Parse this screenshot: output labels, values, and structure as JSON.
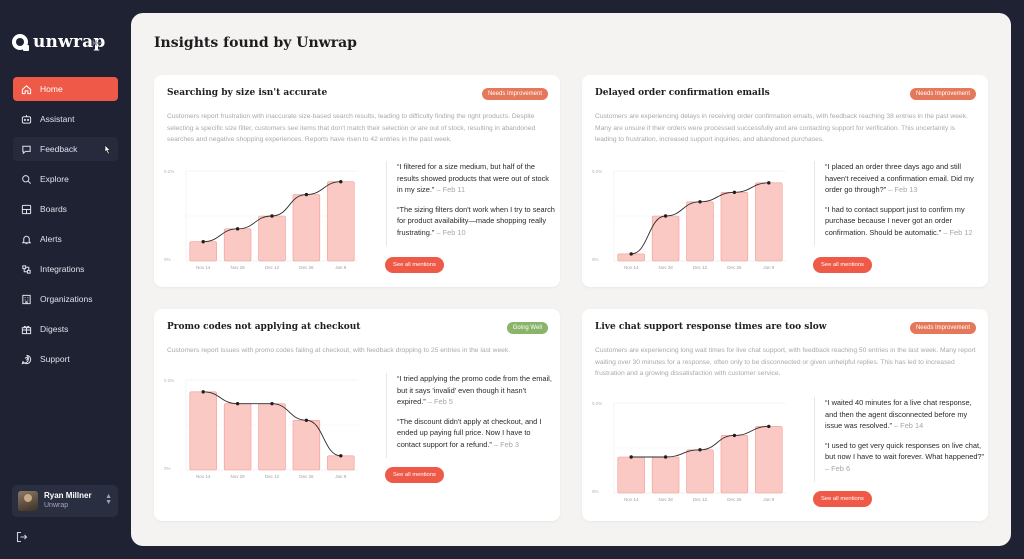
{
  "app": {
    "name": "unwrap"
  },
  "sidebar": {
    "items": [
      {
        "label": "Home",
        "icon": "home-icon",
        "active": true
      },
      {
        "label": "Assistant",
        "icon": "assistant-icon"
      },
      {
        "label": "Feedback",
        "icon": "feedback-icon"
      },
      {
        "label": "Explore",
        "icon": "search-icon"
      },
      {
        "label": "Boards",
        "icon": "boards-icon"
      },
      {
        "label": "Alerts",
        "icon": "bell-icon"
      },
      {
        "label": "Integrations",
        "icon": "integrations-icon"
      },
      {
        "label": "Organizations",
        "icon": "building-icon"
      },
      {
        "label": "Digests",
        "icon": "gift-icon"
      },
      {
        "label": "Support",
        "icon": "support-icon"
      }
    ],
    "user": {
      "name": "Ryan Millner",
      "org": "Unwrap"
    }
  },
  "main": {
    "title": "Insights found by Unwrap",
    "cards": [
      {
        "title": "Searching by size isn't accurate",
        "badge": "Needs Improvement",
        "badge_type": "warn",
        "description": "Customers report frustration with inaccurate size-based search results, leading to difficulty finding the right products. Despite selecting a specific size filter, customers see items that don't match their selection or are out of stock, resulting in abandoned searches and negative shopping experiences. Reports have risen to 42 entries in the past week.",
        "quotes": [
          {
            "text": "“I filtered for a size medium, but half of the results showed products that were out of stock in my size.”",
            "date": "– Feb 11"
          },
          {
            "text": "“The sizing filters don't work when I try to search for product availability—made shopping really frustrating.”",
            "date": "– Feb 10"
          }
        ],
        "button": "See all mentions",
        "chart": {
          "type": "bar",
          "categories": [
            "Nov 14",
            "Nov 28",
            "Dec 12",
            "Dec 26",
            "Jan 9"
          ],
          "values": [
            9,
            15,
            21,
            31,
            37
          ],
          "yticks": [
            "0.2%",
            "0%"
          ],
          "ymax": 42
        }
      },
      {
        "title": "Delayed order confirmation emails",
        "badge": "Needs Improvement",
        "badge_type": "warn",
        "description": "Customers are experiencing delays in receiving order confirmation emails, with feedback reaching 38 entries in the past week. Many are unsure if their orders were processed successfully and are contacting support for verification. This uncertainty is leading to frustration, increased support inquiries, and abandoned purchases.",
        "quotes": [
          {
            "text": "“I placed an order three days ago and still haven't received a confirmation email. Did my order go through?”",
            "date": "– Feb 13"
          },
          {
            "text": "“I had to contact support just to confirm my purchase because I never got an order confirmation. Should be automatic.”",
            "date": "– Feb 12"
          }
        ],
        "button": "See all mentions",
        "chart": {
          "type": "bar",
          "categories": [
            "Nov 14",
            "Nov 28",
            "Dec 12",
            "Dec 26",
            "Jan 9"
          ],
          "values": [
            3,
            19,
            25,
            29,
            33
          ],
          "yticks": [
            "0.2%",
            "0%"
          ],
          "ymax": 38
        }
      },
      {
        "title": "Promo codes not applying at checkout",
        "badge": "Going Well",
        "badge_type": "good",
        "description": "Customers report issues with promo codes failing at checkout, with feedback dropping to 25 entries in the last week.",
        "quotes": [
          {
            "text": "“I tried applying the promo code from the email, but it says 'invalid' even though it hasn't expired.”",
            "date": "– Feb 5"
          },
          {
            "text": "“The discount didn't apply at checkout, and I ended up paying full price. Now I have to contact support for a refund.”",
            "date": "– Feb 3"
          }
        ],
        "button": "See all mentions",
        "chart": {
          "type": "bar",
          "categories": [
            "Nov 14",
            "Nov 28",
            "Dec 12",
            "Dec 26",
            "Jan 9"
          ],
          "values": [
            33,
            28,
            28,
            21,
            6
          ],
          "yticks": [
            "0.2%",
            "0%"
          ],
          "ymax": 38
        }
      },
      {
        "title": "Live chat support response times are too slow",
        "badge": "Needs Improvement",
        "badge_type": "warn",
        "description": "Customers are experiencing long wait times for live chat support, with feedback reaching 50 entries in the last week. Many report waiting over 30 minutes for a response, often only to be disconnected or given unhelpful replies. This has led to increased frustration and a growing dissatisfaction with customer service.",
        "quotes": [
          {
            "text": "“I waited 40 minutes for a live chat response, and then the agent disconnected before my issue was resolved.”",
            "date": "– Feb 14"
          },
          {
            "text": "“I used to get very quick responses on live chat, but now I have to wait forever. What happened?”",
            "date": "– Feb 6"
          }
        ],
        "button": "See all mentions",
        "chart": {
          "type": "bar",
          "categories": [
            "Nov 14",
            "Nov 28",
            "Dec 12",
            "Dec 26",
            "Jan 9"
          ],
          "values": [
            20,
            20,
            24,
            32,
            37
          ],
          "yticks": [
            "0.2%",
            "0%"
          ],
          "ymax": 50
        }
      }
    ]
  },
  "chart_data": [
    {
      "type": "bar",
      "categories": [
        "Nov 14",
        "Nov 28",
        "Dec 12",
        "Dec 26",
        "Jan 9"
      ],
      "values": [
        9,
        15,
        21,
        31,
        37
      ]
    },
    {
      "type": "bar",
      "categories": [
        "Nov 14",
        "Nov 28",
        "Dec 12",
        "Dec 26",
        "Jan 9"
      ],
      "values": [
        3,
        19,
        25,
        29,
        33
      ]
    },
    {
      "type": "bar",
      "categories": [
        "Nov 14",
        "Nov 28",
        "Dec 12",
        "Dec 26",
        "Jan 9"
      ],
      "values": [
        33,
        28,
        28,
        21,
        6
      ]
    },
    {
      "type": "bar",
      "categories": [
        "Nov 14",
        "Nov 28",
        "Dec 12",
        "Dec 26",
        "Jan 9"
      ],
      "values": [
        20,
        20,
        24,
        32,
        37
      ]
    }
  ],
  "colors": {
    "accent": "#ef5a48",
    "sidebar": "#1f2233",
    "bar_fill": "#fbc9c4",
    "bar_stroke": "#f29a90"
  }
}
